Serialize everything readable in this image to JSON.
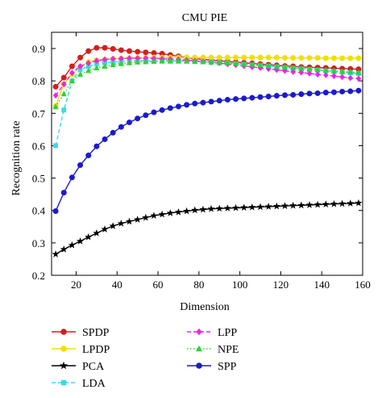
{
  "chart_data": {
    "type": "line",
    "title": "CMU PIE",
    "xlabel": "Dimension",
    "ylabel": "Recognition rate",
    "xlim": [
      8,
      160
    ],
    "ylim": [
      0.2,
      0.95
    ],
    "xticks": [
      20,
      40,
      60,
      80,
      100,
      120,
      140,
      160
    ],
    "yticks": [
      0.2,
      0.3,
      0.4,
      0.5,
      0.6,
      0.7,
      0.8,
      0.9
    ],
    "grid": false,
    "legend_position": "bottom",
    "x": [
      10,
      14,
      18,
      22,
      26,
      30,
      34,
      38,
      42,
      46,
      50,
      54,
      58,
      62,
      66,
      70,
      74,
      78,
      82,
      86,
      90,
      94,
      98,
      102,
      106,
      110,
      114,
      118,
      122,
      126,
      130,
      134,
      138,
      142,
      146,
      150,
      154,
      158
    ],
    "series": [
      {
        "name": "SPDP",
        "color": "#d21f1f",
        "marker": "circle",
        "line": "solid",
        "values": [
          0.782,
          0.81,
          0.845,
          0.872,
          0.892,
          0.902,
          0.902,
          0.899,
          0.895,
          0.892,
          0.89,
          0.888,
          0.886,
          0.884,
          0.88,
          0.876,
          0.872,
          0.869,
          0.866,
          0.864,
          0.862,
          0.86,
          0.858,
          0.856,
          0.854,
          0.852,
          0.85,
          0.848,
          0.846,
          0.845,
          0.843,
          0.842,
          0.841,
          0.84,
          0.839,
          0.838,
          0.837,
          0.836
        ]
      },
      {
        "name": "LPDP",
        "color": "#f0e000",
        "marker": "circle",
        "line": "solid",
        "values": [
          0.722,
          0.79,
          0.82,
          0.845,
          0.858,
          0.864,
          0.866,
          0.868,
          0.869,
          0.87,
          0.871,
          0.871,
          0.872,
          0.872,
          0.872,
          0.872,
          0.872,
          0.872,
          0.872,
          0.872,
          0.872,
          0.872,
          0.872,
          0.872,
          0.872,
          0.872,
          0.872,
          0.872,
          0.871,
          0.871,
          0.871,
          0.871,
          0.871,
          0.87,
          0.87,
          0.87,
          0.87,
          0.87
        ]
      },
      {
        "name": "PCA",
        "color": "#000000",
        "marker": "star",
        "line": "solid",
        "values": [
          0.265,
          0.28,
          0.293,
          0.305,
          0.318,
          0.33,
          0.342,
          0.352,
          0.36,
          0.366,
          0.372,
          0.378,
          0.384,
          0.388,
          0.392,
          0.395,
          0.398,
          0.401,
          0.403,
          0.405,
          0.406,
          0.407,
          0.408,
          0.409,
          0.41,
          0.411,
          0.412,
          0.413,
          0.414,
          0.415,
          0.416,
          0.417,
          0.418,
          0.419,
          0.42,
          0.421,
          0.422,
          0.423
        ]
      },
      {
        "name": "LDA",
        "color": "#3fd8e8",
        "marker": "square",
        "line": "dashed",
        "values": [
          0.6,
          0.71,
          0.8,
          0.835,
          0.845,
          0.852,
          0.856,
          0.858,
          0.86,
          0.862,
          0.862,
          0.862,
          0.862,
          0.862,
          0.862,
          0.862,
          0.861,
          0.86,
          0.859,
          0.858,
          0.856,
          0.855,
          0.853,
          0.851,
          0.849,
          0.847,
          0.845,
          0.843,
          0.841,
          0.839,
          0.837,
          0.835,
          0.833,
          0.831,
          0.829,
          0.827,
          0.825,
          0.823
        ]
      },
      {
        "name": "LPP",
        "color": "#ee22ee",
        "marker": "diamond",
        "line": "dashed",
        "values": [
          0.755,
          0.79,
          0.825,
          0.845,
          0.855,
          0.862,
          0.866,
          0.868,
          0.869,
          0.87,
          0.87,
          0.87,
          0.869,
          0.868,
          0.867,
          0.866,
          0.864,
          0.862,
          0.86,
          0.857,
          0.855,
          0.852,
          0.849,
          0.846,
          0.843,
          0.84,
          0.837,
          0.834,
          0.831,
          0.828,
          0.826,
          0.823,
          0.82,
          0.818,
          0.815,
          0.812,
          0.809,
          0.807
        ]
      },
      {
        "name": "NPE",
        "color": "#2dd42d",
        "marker": "triangle",
        "line": "dotted",
        "values": [
          0.72,
          0.76,
          0.8,
          0.82,
          0.832,
          0.84,
          0.845,
          0.85,
          0.853,
          0.856,
          0.858,
          0.859,
          0.86,
          0.861,
          0.861,
          0.861,
          0.861,
          0.86,
          0.859,
          0.858,
          0.857,
          0.856,
          0.854,
          0.852,
          0.851,
          0.849,
          0.847,
          0.845,
          0.843,
          0.841,
          0.839,
          0.837,
          0.835,
          0.833,
          0.831,
          0.829,
          0.828,
          0.826
        ]
      },
      {
        "name": "SPP",
        "color": "#1a1ad0",
        "marker": "circle",
        "line": "solid",
        "values": [
          0.398,
          0.455,
          0.502,
          0.54,
          0.57,
          0.598,
          0.62,
          0.64,
          0.658,
          0.672,
          0.684,
          0.694,
          0.703,
          0.71,
          0.716,
          0.721,
          0.726,
          0.73,
          0.733,
          0.736,
          0.739,
          0.742,
          0.744,
          0.746,
          0.748,
          0.75,
          0.752,
          0.754,
          0.756,
          0.757,
          0.759,
          0.761,
          0.762,
          0.764,
          0.765,
          0.767,
          0.768,
          0.77
        ]
      }
    ]
  }
}
